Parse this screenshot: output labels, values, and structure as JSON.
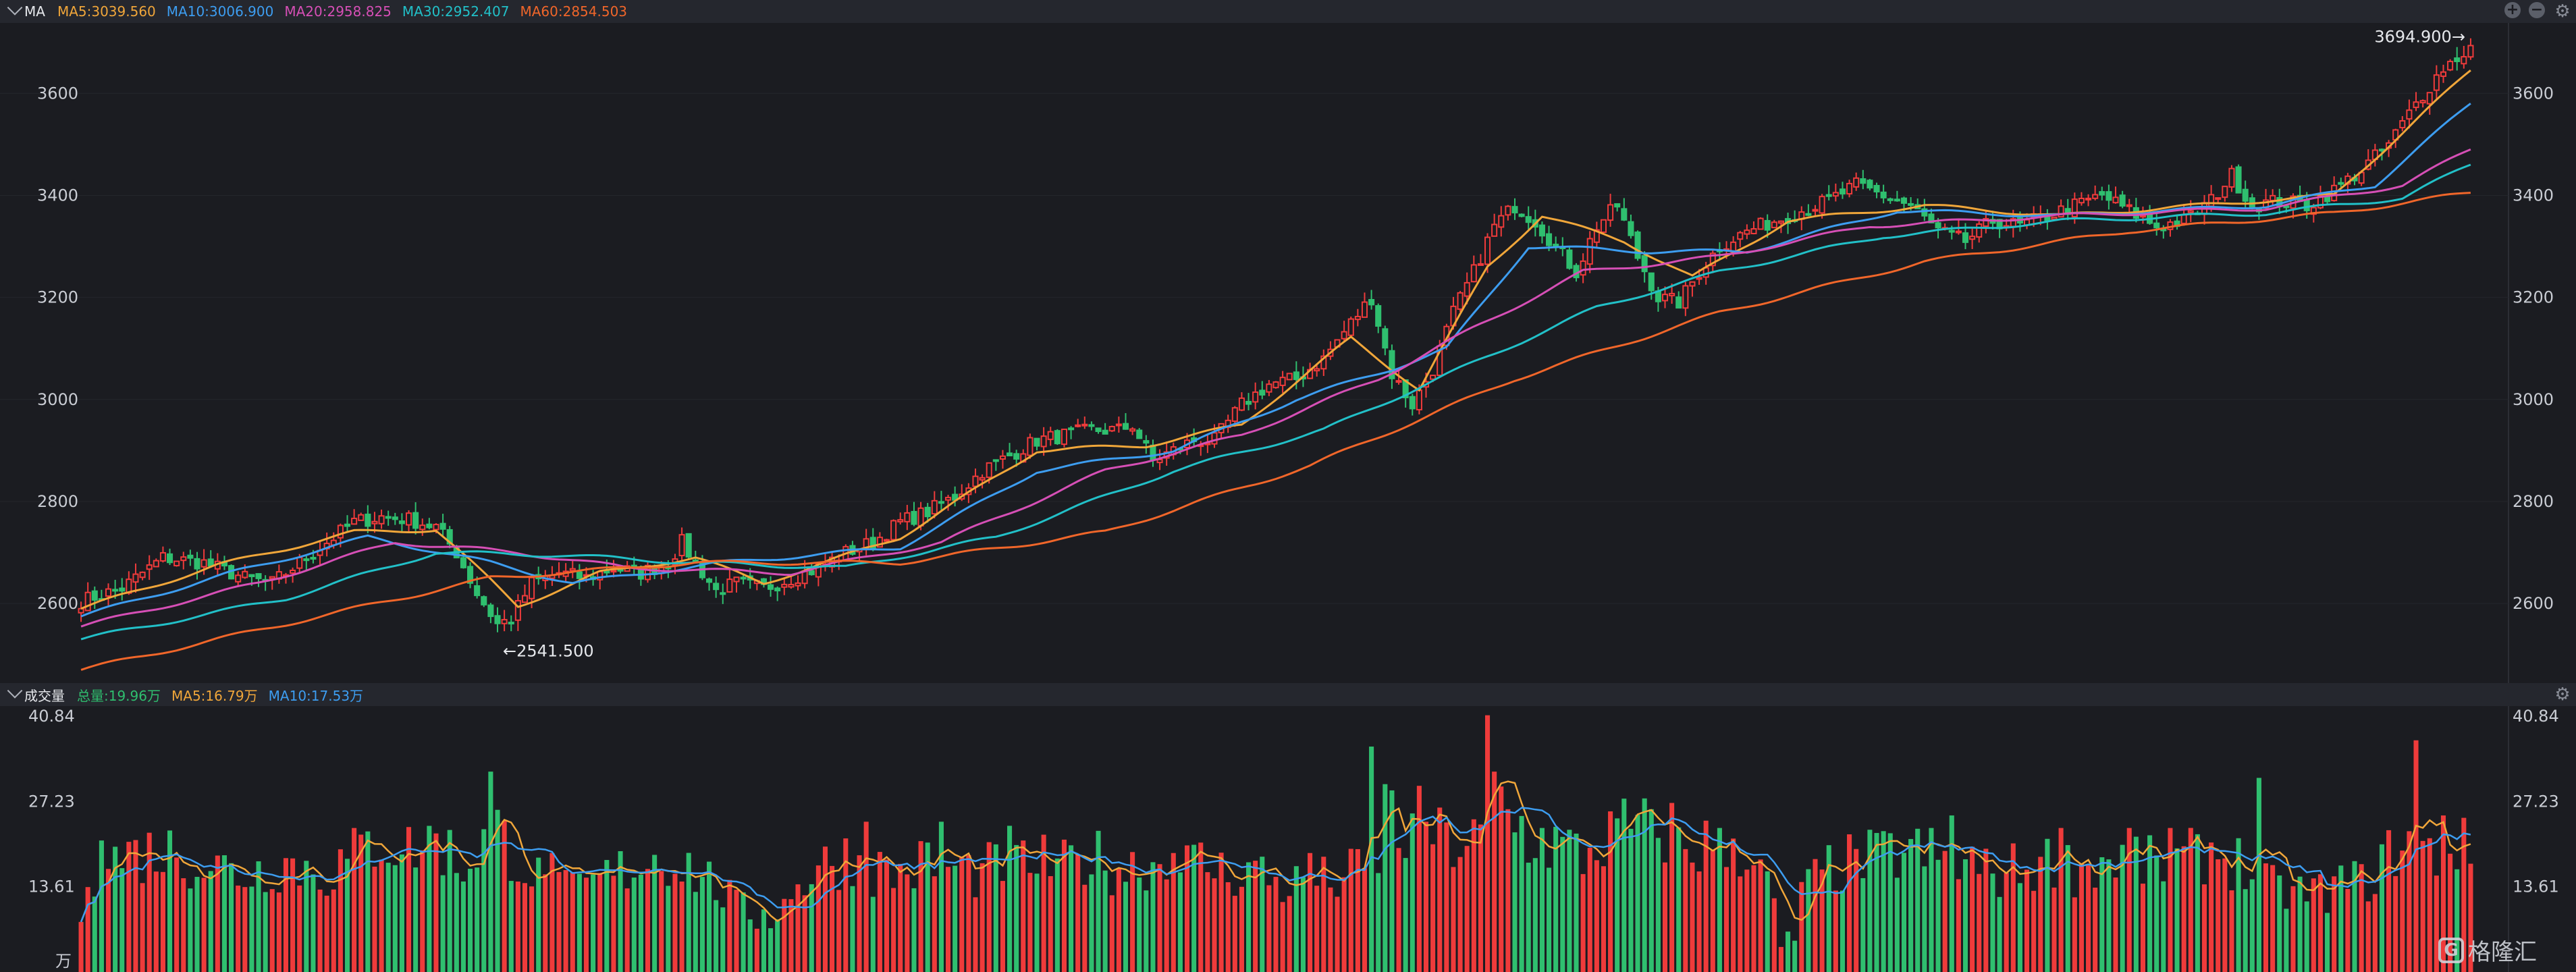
{
  "header": {
    "title": "MA",
    "items": [
      {
        "label": "MA5:3039.560",
        "color": "#f0a63a"
      },
      {
        "label": "MA10:3006.900",
        "color": "#3d9df0"
      },
      {
        "label": "MA20:2958.825",
        "color": "#d64fb6"
      },
      {
        "label": "MA30:2952.407",
        "color": "#22c0c8"
      },
      {
        "label": "MA60:2854.503",
        "color": "#f0662a"
      }
    ]
  },
  "volume_header": {
    "title": "成交量",
    "items": [
      {
        "label": "总量:19.96万",
        "color": "#2fbf6f"
      },
      {
        "label": "MA5:16.79万",
        "color": "#f0a63a"
      },
      {
        "label": "MA10:17.53万",
        "color": "#3d9df0"
      }
    ]
  },
  "logo_text": "格隆汇",
  "chart_data": [
    {
      "type": "candlestick",
      "y_ticks": [
        2600,
        2800,
        3000,
        3200,
        3400,
        3600
      ],
      "y_range": [
        2460,
        3730
      ],
      "annotations": [
        {
          "text": "←2541.500",
          "value": 2541.5
        },
        {
          "text": "3694.900→",
          "value": 3694.9
        }
      ],
      "colors": {
        "up": "#ef3b3b",
        "down": "#2fbf6f"
      },
      "close_anchors": [
        [
          0,
          2605
        ],
        [
          6,
          2630
        ],
        [
          12,
          2690
        ],
        [
          18,
          2680
        ],
        [
          24,
          2650
        ],
        [
          28,
          2640
        ],
        [
          34,
          2700
        ],
        [
          40,
          2760
        ],
        [
          44,
          2770
        ],
        [
          48,
          2765
        ],
        [
          52,
          2750
        ],
        [
          55,
          2700
        ],
        [
          58,
          2620
        ],
        [
          61,
          2560
        ],
        [
          63,
          2570
        ],
        [
          66,
          2640
        ],
        [
          70,
          2660
        ],
        [
          74,
          2650
        ],
        [
          78,
          2670
        ],
        [
          82,
          2660
        ],
        [
          86,
          2680
        ],
        [
          88,
          2720
        ],
        [
          90,
          2680
        ],
        [
          93,
          2625
        ],
        [
          96,
          2640
        ],
        [
          100,
          2630
        ],
        [
          104,
          2650
        ],
        [
          108,
          2670
        ],
        [
          112,
          2700
        ],
        [
          116,
          2720
        ],
        [
          120,
          2760
        ],
        [
          124,
          2780
        ],
        [
          128,
          2810
        ],
        [
          132,
          2860
        ],
        [
          136,
          2890
        ],
        [
          140,
          2920
        ],
        [
          144,
          2930
        ],
        [
          148,
          2940
        ],
        [
          152,
          2940
        ],
        [
          154,
          2950
        ],
        [
          157,
          2880
        ],
        [
          160,
          2900
        ],
        [
          163,
          2920
        ],
        [
          166,
          2920
        ],
        [
          170,
          2990
        ],
        [
          174,
          3030
        ],
        [
          178,
          3040
        ],
        [
          182,
          3080
        ],
        [
          186,
          3150
        ],
        [
          189,
          3200
        ],
        [
          192,
          3050
        ],
        [
          195,
          2990
        ],
        [
          198,
          3060
        ],
        [
          201,
          3170
        ],
        [
          204,
          3250
        ],
        [
          207,
          3340
        ],
        [
          210,
          3380
        ],
        [
          213,
          3350
        ],
        [
          216,
          3300
        ],
        [
          219,
          3250
        ],
        [
          222,
          3340
        ],
        [
          225,
          3380
        ],
        [
          228,
          3280
        ],
        [
          231,
          3200
        ],
        [
          234,
          3190
        ],
        [
          237,
          3250
        ],
        [
          240,
          3300
        ],
        [
          244,
          3330
        ],
        [
          248,
          3350
        ],
        [
          252,
          3370
        ],
        [
          256,
          3390
        ],
        [
          260,
          3420
        ],
        [
          264,
          3400
        ],
        [
          268,
          3380
        ],
        [
          272,
          3330
        ],
        [
          276,
          3310
        ],
        [
          280,
          3350
        ],
        [
          284,
          3340
        ],
        [
          288,
          3360
        ],
        [
          292,
          3380
        ],
        [
          296,
          3400
        ],
        [
          300,
          3370
        ],
        [
          304,
          3340
        ],
        [
          308,
          3350
        ],
        [
          312,
          3390
        ],
        [
          315,
          3440
        ],
        [
          318,
          3380
        ],
        [
          322,
          3390
        ],
        [
          326,
          3380
        ],
        [
          330,
          3410
        ],
        [
          334,
          3450
        ],
        [
          338,
          3500
        ],
        [
          342,
          3580
        ],
        [
          346,
          3650
        ],
        [
          350,
          3690
        ]
      ],
      "ma_lines": [
        {
          "name": "MA5",
          "color": "#f0a63a",
          "anchors": [
            [
              0,
              2590
            ],
            [
              20,
              2675
            ],
            [
              40,
              2740
            ],
            [
              52,
              2745
            ],
            [
              64,
              2595
            ],
            [
              76,
              2660
            ],
            [
              90,
              2690
            ],
            [
              100,
              2640
            ],
            [
              120,
              2730
            ],
            [
              140,
              2900
            ],
            [
              156,
              2910
            ],
            [
              170,
              2950
            ],
            [
              186,
              3120
            ],
            [
              196,
              3020
            ],
            [
              206,
              3260
            ],
            [
              214,
              3360
            ],
            [
              226,
              3310
            ],
            [
              236,
              3240
            ],
            [
              250,
              3350
            ],
            [
              270,
              3380
            ],
            [
              290,
              3360
            ],
            [
              310,
              3380
            ],
            [
              330,
              3400
            ],
            [
              350,
              3645
            ]
          ]
        },
        {
          "name": "MA10",
          "color": "#3d9df0",
          "anchors": [
            [
              0,
              2575
            ],
            [
              22,
              2660
            ],
            [
              42,
              2730
            ],
            [
              60,
              2680
            ],
            [
              72,
              2640
            ],
            [
              94,
              2680
            ],
            [
              120,
              2710
            ],
            [
              140,
              2860
            ],
            [
              160,
              2900
            ],
            [
              178,
              3000
            ],
            [
              192,
              3060
            ],
            [
              200,
              3100
            ],
            [
              212,
              3300
            ],
            [
              230,
              3290
            ],
            [
              244,
              3290
            ],
            [
              266,
              3370
            ],
            [
              290,
              3360
            ],
            [
              320,
              3380
            ],
            [
              336,
              3420
            ],
            [
              350,
              3580
            ]
          ]
        },
        {
          "name": "MA20",
          "color": "#d64fb6",
          "anchors": [
            [
              0,
              2555
            ],
            [
              26,
              2640
            ],
            [
              46,
              2720
            ],
            [
              64,
              2700
            ],
            [
              80,
              2670
            ],
            [
              104,
              2660
            ],
            [
              126,
              2720
            ],
            [
              150,
              2860
            ],
            [
              170,
              2930
            ],
            [
              190,
              3040
            ],
            [
              204,
              3140
            ],
            [
              220,
              3250
            ],
            [
              240,
              3280
            ],
            [
              262,
              3340
            ],
            [
              290,
              3360
            ],
            [
              320,
              3375
            ],
            [
              340,
              3420
            ],
            [
              350,
              3490
            ]
          ]
        },
        {
          "name": "MA30",
          "color": "#22c0c8",
          "anchors": [
            [
              0,
              2530
            ],
            [
              30,
              2610
            ],
            [
              52,
              2700
            ],
            [
              70,
              2695
            ],
            [
              90,
              2680
            ],
            [
              112,
              2670
            ],
            [
              134,
              2730
            ],
            [
              160,
              2860
            ],
            [
              182,
              2940
            ],
            [
              202,
              3060
            ],
            [
              222,
              3180
            ],
            [
              240,
              3250
            ],
            [
              264,
              3320
            ],
            [
              290,
              3350
            ],
            [
              320,
              3365
            ],
            [
              340,
              3395
            ],
            [
              350,
              3460
            ]
          ]
        },
        {
          "name": "MA60",
          "color": "#f0662a",
          "anchors": [
            [
              0,
              2470
            ],
            [
              30,
              2560
            ],
            [
              60,
              2650
            ],
            [
              90,
              2680
            ],
            [
              120,
              2680
            ],
            [
              150,
              2740
            ],
            [
              180,
              2870
            ],
            [
              210,
              3040
            ],
            [
              240,
              3170
            ],
            [
              270,
              3270
            ],
            [
              300,
              3330
            ],
            [
              330,
              3365
            ],
            [
              350,
              3405
            ]
          ]
        }
      ]
    },
    {
      "type": "bar",
      "ylabel": "万",
      "y_ticks": [
        13.61,
        27.23,
        40.84
      ],
      "y_range": [
        0,
        41.5
      ],
      "colors": {
        "up": "#ef3b3b",
        "down": "#2fbf6f"
      },
      "volume_anchors": [
        [
          0,
          16
        ],
        [
          6,
          19
        ],
        [
          12,
          20
        ],
        [
          18,
          18
        ],
        [
          24,
          16
        ],
        [
          30,
          18
        ],
        [
          36,
          16
        ],
        [
          40,
          19
        ],
        [
          44,
          22
        ],
        [
          48,
          20
        ],
        [
          52,
          22
        ],
        [
          56,
          17
        ],
        [
          60,
          24
        ],
        [
          64,
          19
        ],
        [
          68,
          14
        ],
        [
          72,
          13
        ],
        [
          76,
          15
        ],
        [
          80,
          17
        ],
        [
          84,
          19
        ],
        [
          88,
          18
        ],
        [
          92,
          15
        ],
        [
          96,
          11
        ],
        [
          100,
          8
        ],
        [
          104,
          12
        ],
        [
          108,
          17
        ],
        [
          112,
          19
        ],
        [
          116,
          17
        ],
        [
          120,
          16
        ],
        [
          124,
          18
        ],
        [
          128,
          17
        ],
        [
          132,
          16
        ],
        [
          136,
          19
        ],
        [
          140,
          18
        ],
        [
          144,
          17
        ],
        [
          148,
          19
        ],
        [
          152,
          17
        ],
        [
          156,
          18
        ],
        [
          160,
          17
        ],
        [
          164,
          18
        ],
        [
          168,
          16
        ],
        [
          172,
          17
        ],
        [
          176,
          14
        ],
        [
          180,
          15
        ],
        [
          184,
          15
        ],
        [
          188,
          17
        ],
        [
          192,
          21
        ],
        [
          196,
          24
        ],
        [
          200,
          21
        ],
        [
          204,
          21
        ],
        [
          208,
          28
        ],
        [
          212,
          22
        ],
        [
          216,
          21
        ],
        [
          220,
          19
        ],
        [
          224,
          22
        ],
        [
          228,
          24
        ],
        [
          232,
          23
        ],
        [
          236,
          20
        ],
        [
          240,
          22
        ],
        [
          244,
          20
        ],
        [
          248,
          12
        ],
        [
          250,
          6
        ],
        [
          252,
          13
        ],
        [
          256,
          17
        ],
        [
          260,
          18
        ],
        [
          264,
          19
        ],
        [
          268,
          20
        ],
        [
          272,
          18
        ],
        [
          276,
          17
        ],
        [
          280,
          16
        ],
        [
          284,
          17
        ],
        [
          288,
          18
        ],
        [
          292,
          17
        ],
        [
          296,
          18
        ],
        [
          300,
          19
        ],
        [
          304,
          17
        ],
        [
          308,
          18
        ],
        [
          312,
          20
        ],
        [
          316,
          18
        ],
        [
          320,
          14
        ],
        [
          324,
          13
        ],
        [
          328,
          13
        ],
        [
          332,
          14
        ],
        [
          336,
          16
        ],
        [
          340,
          22
        ],
        [
          344,
          19
        ],
        [
          348,
          21
        ],
        [
          350,
          19
        ]
      ],
      "ma_lines": [
        {
          "name": "MA5",
          "color": "#f0a63a"
        },
        {
          "name": "MA10",
          "color": "#3d9df0"
        }
      ],
      "spikes": [
        [
          0,
          8
        ],
        [
          3,
          21
        ],
        [
          60,
          32
        ],
        [
          69,
          19
        ],
        [
          100,
          10
        ],
        [
          105,
          14
        ],
        [
          115,
          24
        ],
        [
          126,
          24
        ],
        [
          138,
          21
        ],
        [
          160,
          19
        ],
        [
          180,
          19
        ],
        [
          189,
          36
        ],
        [
          191,
          30
        ],
        [
          192,
          29
        ],
        [
          197,
          24
        ],
        [
          206,
          41
        ],
        [
          207,
          32
        ],
        [
          209,
          26
        ],
        [
          214,
          23
        ],
        [
          230,
          26
        ],
        [
          233,
          27
        ],
        [
          240,
          23
        ],
        [
          249,
          4
        ],
        [
          251,
          5
        ],
        [
          257,
          13
        ],
        [
          271,
          23
        ],
        [
          274,
          25
        ],
        [
          277,
          20
        ],
        [
          290,
          23
        ],
        [
          300,
          23
        ],
        [
          306,
          23
        ],
        [
          310,
          22
        ],
        [
          319,
          31
        ],
        [
          331,
          17
        ],
        [
          342,
          37
        ],
        [
          346,
          25
        ]
      ]
    }
  ]
}
